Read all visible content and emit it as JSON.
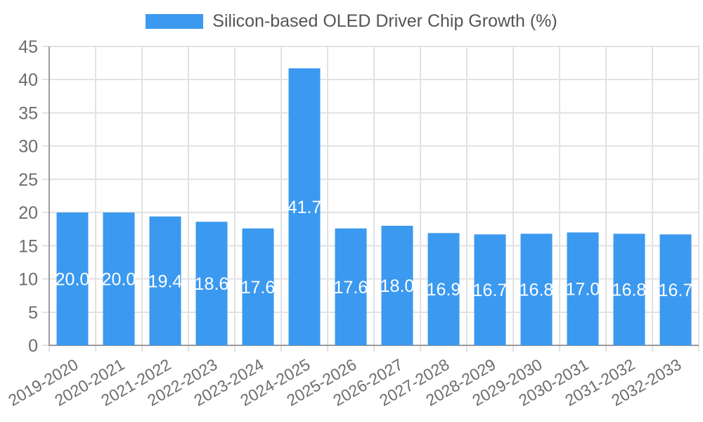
{
  "legend": {
    "label": "Silicon-based OLED Driver Chip Growth (%)"
  },
  "colors": {
    "bar": "#3b99ef",
    "grid": "#e2e2e2",
    "axis_line": "#9a9a9a",
    "tick_text": "#6d6d6d",
    "legend_text": "#555555",
    "bar_label_text": "#ffffff",
    "background": "#ffffff"
  },
  "chart_data": {
    "type": "bar",
    "title": "Silicon-based OLED Driver Chip Growth (%)",
    "categories": [
      "2019-2020",
      "2020-2021",
      "2021-2022",
      "2022-2023",
      "2023-2024",
      "2024-2025",
      "2025-2026",
      "2026-2027",
      "2027-2028",
      "2028-2029",
      "2029-2030",
      "2030-2031",
      "2031-2032",
      "2032-2033"
    ],
    "values": [
      20.0,
      20.0,
      19.4,
      18.6,
      17.6,
      41.7,
      17.6,
      18.0,
      16.9,
      16.7,
      16.8,
      17.0,
      16.8,
      16.7
    ],
    "bar_labels": [
      "20.0",
      "20.0",
      "19.4",
      "18.6",
      "17.6",
      "41.7",
      "17.6",
      "18.0",
      "16.9",
      "16.7",
      "16.8",
      "17.0",
      "16.8",
      "16.7"
    ],
    "yticks": [
      0,
      5,
      10,
      15,
      20,
      25,
      30,
      35,
      40,
      45
    ],
    "ylim": [
      0,
      45
    ],
    "xlabel": "",
    "ylabel": "",
    "grid": true,
    "legend_position": "top-center",
    "bar_label_position": "center-inside",
    "xtick_rotation_deg": -30
  }
}
